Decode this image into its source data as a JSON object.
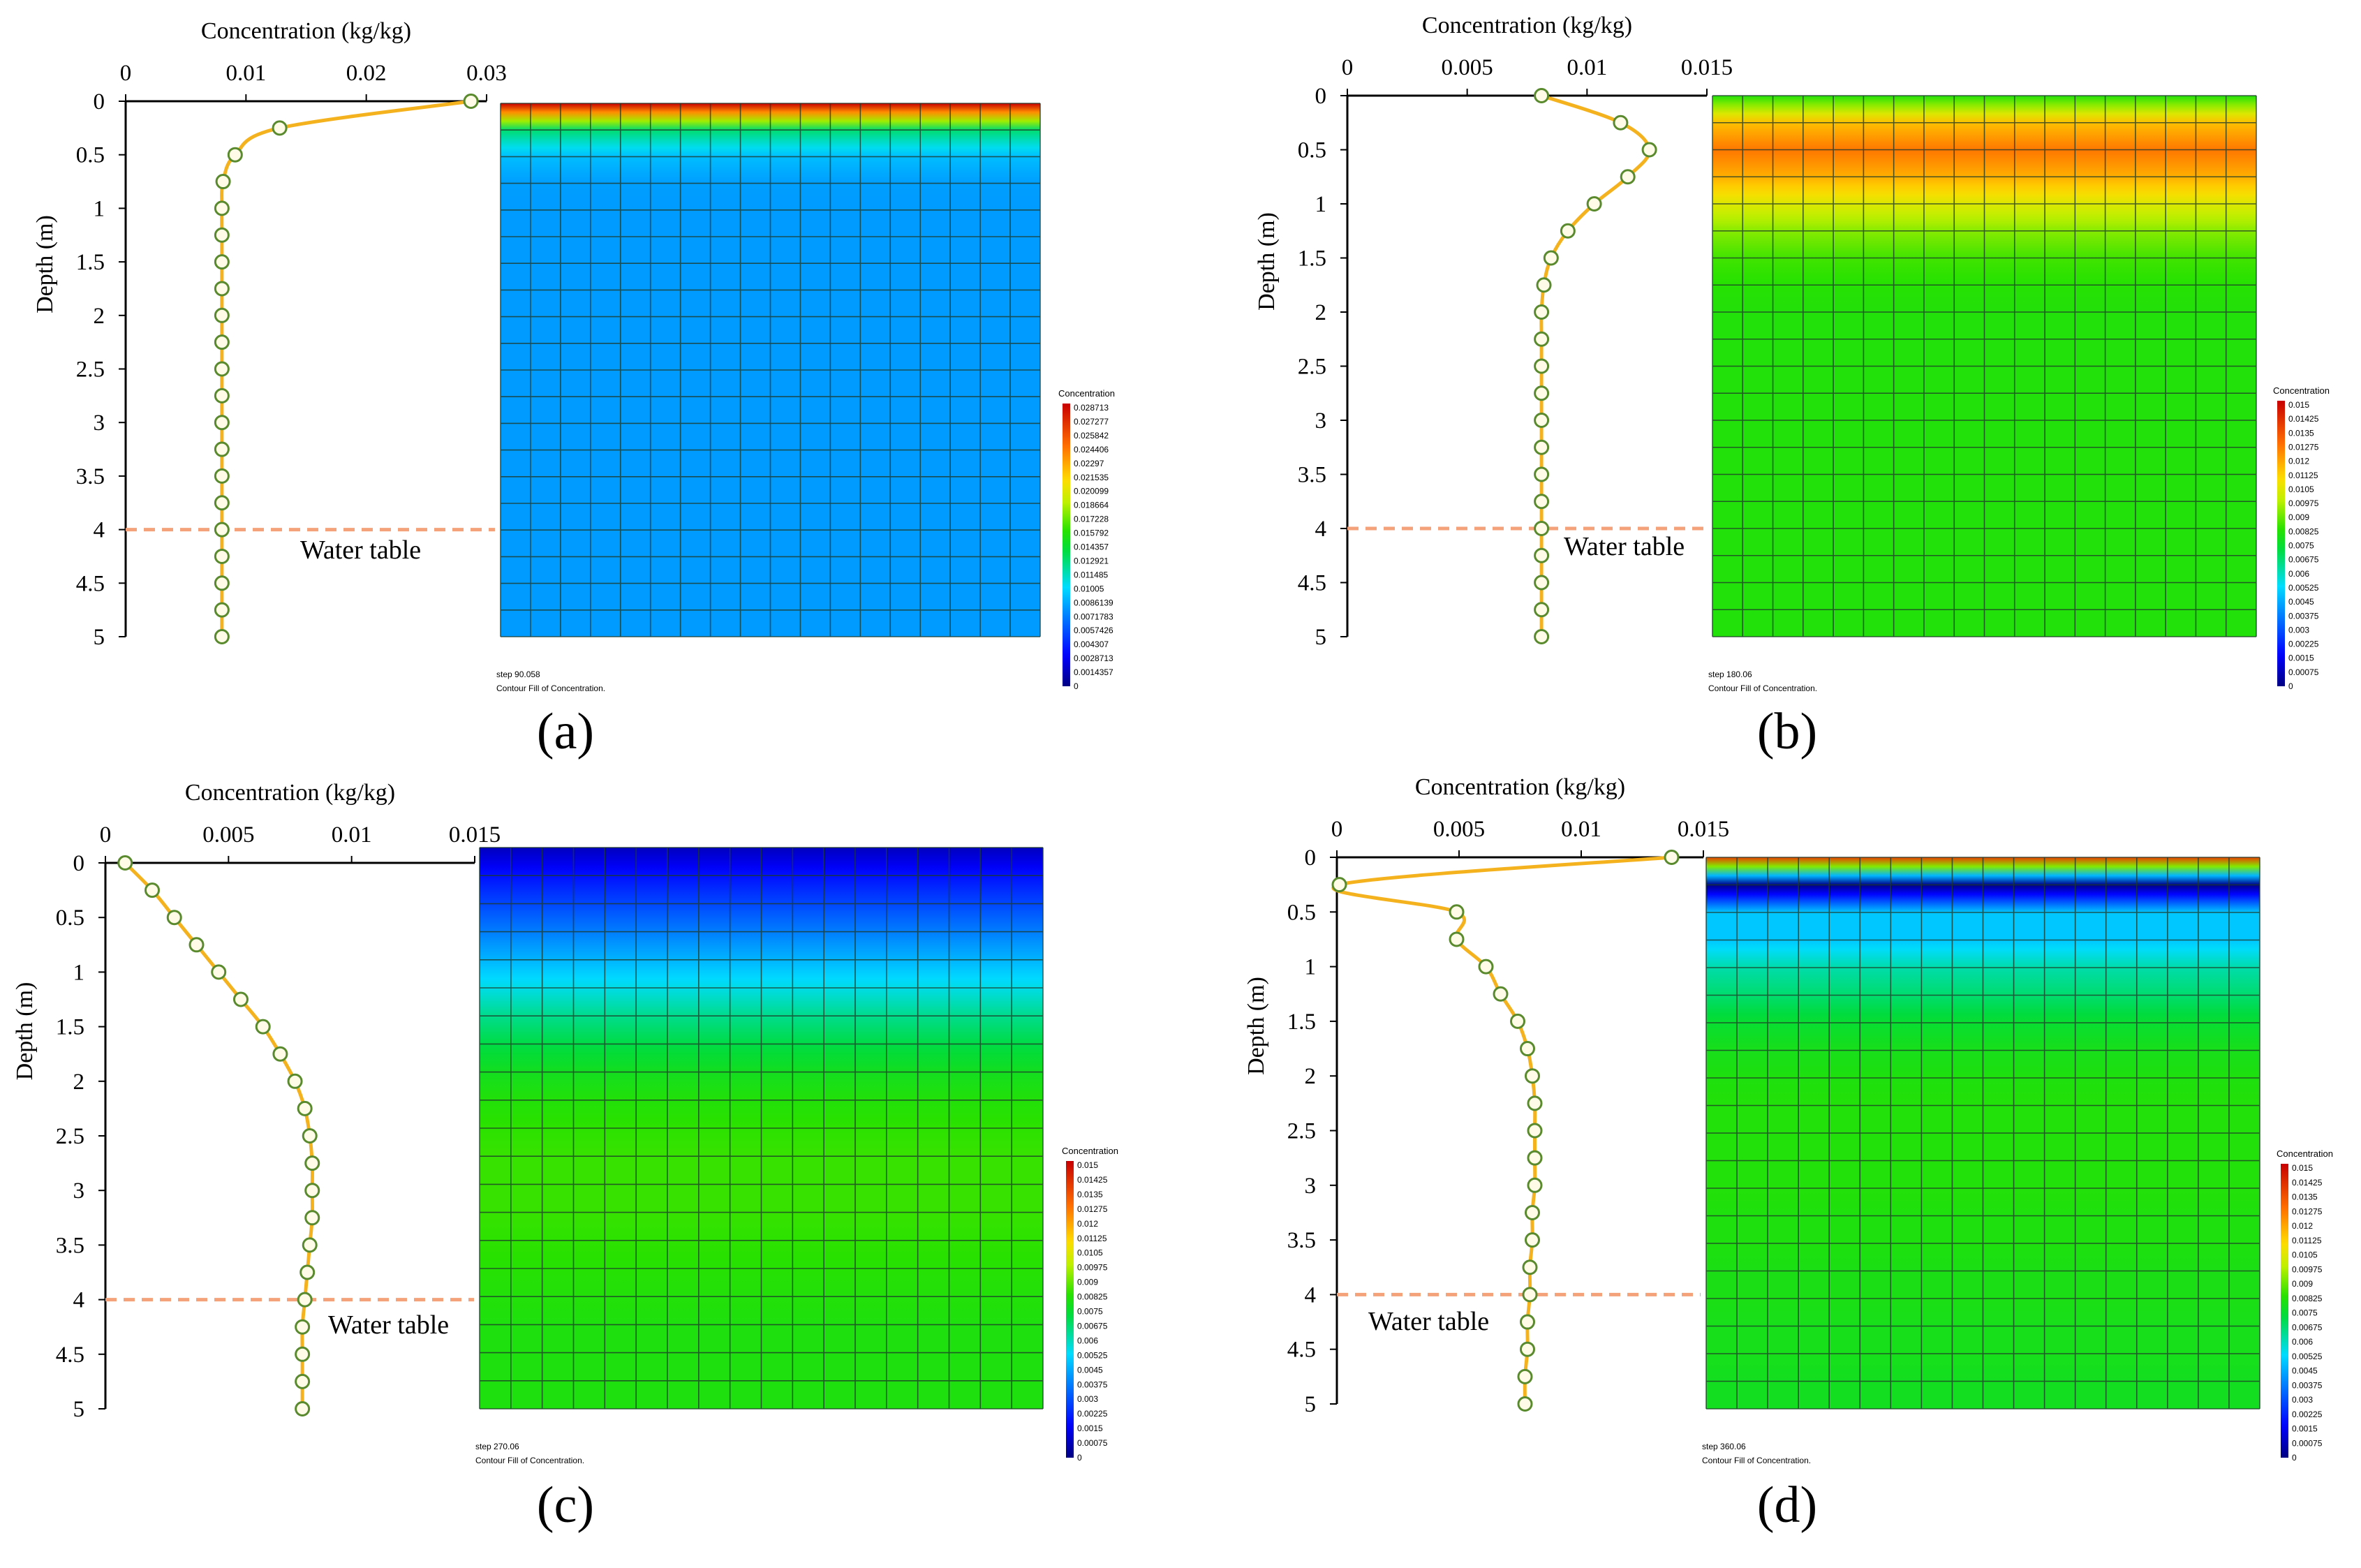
{
  "figure": {
    "colors": {
      "line": "#f5b21f",
      "marker": "#5a8a2e",
      "water_table": "#f4a27a",
      "mesh_line": "#1f3b2a"
    }
  },
  "chart_data": [
    {
      "type": "line",
      "panel_label": "(a)",
      "xlabel": "Concentration (kg/kg)",
      "ylabel": "Depth (m)",
      "xlim": [
        0,
        0.03
      ],
      "ylim": [
        0,
        5
      ],
      "xticks": [
        "0",
        "0.01",
        "0.02",
        "0.03"
      ],
      "yticks": [
        "0",
        "0.5",
        "1",
        "1.5",
        "2",
        "2.5",
        "3",
        "3.5",
        "4",
        "4.5",
        "5"
      ],
      "water_table_label": "Water table",
      "water_table_depth": 4,
      "series": [
        {
          "name": "Concentration",
          "depth": [
            0,
            0.25,
            0.5,
            0.75,
            1,
            1.25,
            1.5,
            1.75,
            2,
            2.25,
            2.5,
            2.75,
            3,
            3.25,
            3.5,
            3.75,
            4,
            4.25,
            4.5,
            4.75,
            5
          ],
          "values": [
            0.0287,
            0.0128,
            0.0091,
            0.0081,
            0.008,
            0.008,
            0.008,
            0.008,
            0.008,
            0.008,
            0.008,
            0.008,
            0.008,
            0.008,
            0.008,
            0.008,
            0.008,
            0.008,
            0.008,
            0.008,
            0.008
          ]
        }
      ],
      "contour": {
        "step_text": "step 90.058",
        "caption": "Contour Fill of Concentration.",
        "colorbar_title": "Concentration",
        "colorbar_labels": [
          "0.028713",
          "0.027277",
          "0.025842",
          "0.024406",
          "0.02297",
          "0.021535",
          "0.020099",
          "0.018664",
          "0.017228",
          "0.015792",
          "0.014357",
          "0.012921",
          "0.011485",
          "0.01005",
          "0.0086139",
          "0.0071783",
          "0.0057426",
          "0.004307",
          "0.0028713",
          "0.0014357",
          "0"
        ],
        "vmax": 0.028713
      }
    },
    {
      "type": "line",
      "panel_label": "(b)",
      "xlabel": "Concentration (kg/kg)",
      "ylabel": "Depth (m)",
      "xlim": [
        0,
        0.015
      ],
      "ylim": [
        0,
        5
      ],
      "xticks": [
        "0",
        "0.005",
        "0.01",
        "0.015"
      ],
      "yticks": [
        "0",
        "0.5",
        "1",
        "1.5",
        "2",
        "2.5",
        "3",
        "3.5",
        "4",
        "4.5",
        "5"
      ],
      "water_table_label": "Water table",
      "water_table_depth": 4,
      "series": [
        {
          "name": "Concentration",
          "depth": [
            0,
            0.25,
            0.5,
            0.75,
            1,
            1.25,
            1.5,
            1.75,
            2,
            2.25,
            2.5,
            2.75,
            3,
            3.25,
            3.5,
            3.75,
            4,
            4.25,
            4.5,
            4.75,
            5
          ],
          "values": [
            0.0081,
            0.0114,
            0.0126,
            0.0117,
            0.0103,
            0.0092,
            0.0085,
            0.0082,
            0.0081,
            0.0081,
            0.0081,
            0.0081,
            0.0081,
            0.0081,
            0.0081,
            0.0081,
            0.0081,
            0.0081,
            0.0081,
            0.0081,
            0.0081
          ]
        }
      ],
      "contour": {
        "step_text": "step 180.06",
        "caption": "Contour Fill of Concentration.",
        "colorbar_title": "Concentration",
        "colorbar_labels": [
          "0.015",
          "0.01425",
          "0.0135",
          "0.01275",
          "0.012",
          "0.01125",
          "0.0105",
          "0.00975",
          "0.009",
          "0.00825",
          "0.0075",
          "0.00675",
          "0.006",
          "0.00525",
          "0.0045",
          "0.00375",
          "0.003",
          "0.00225",
          "0.0015",
          "0.00075",
          "0"
        ],
        "vmax": 0.015
      }
    },
    {
      "type": "line",
      "panel_label": "(c)",
      "xlabel": "Concentration (kg/kg)",
      "ylabel": "Depth (m)",
      "xlim": [
        0,
        0.015
      ],
      "ylim": [
        0,
        5
      ],
      "xticks": [
        "0",
        "0.005",
        "0.01",
        "0.015"
      ],
      "yticks": [
        "0",
        "0.5",
        "1",
        "1.5",
        "2",
        "2.5",
        "3",
        "3.5",
        "4",
        "4.5",
        "5"
      ],
      "water_table_label": "Water table",
      "water_table_depth": 4,
      "series": [
        {
          "name": "Concentration",
          "depth": [
            0,
            0.25,
            0.5,
            0.75,
            1,
            1.25,
            1.5,
            1.75,
            2,
            2.25,
            2.5,
            2.75,
            3,
            3.25,
            3.5,
            3.75,
            4,
            4.25,
            4.5,
            4.75,
            5
          ],
          "values": [
            0.0008,
            0.0019,
            0.0028,
            0.0037,
            0.0046,
            0.0055,
            0.0064,
            0.0071,
            0.0077,
            0.0081,
            0.0083,
            0.0084,
            0.0084,
            0.0084,
            0.0083,
            0.0082,
            0.0081,
            0.008,
            0.008,
            0.008,
            0.008
          ]
        }
      ],
      "contour": {
        "step_text": "step 270.06",
        "caption": "Contour Fill of Concentration.",
        "colorbar_title": "Concentration",
        "colorbar_labels": [
          "0.015",
          "0.01425",
          "0.0135",
          "0.01275",
          "0.012",
          "0.01125",
          "0.0105",
          "0.00975",
          "0.009",
          "0.00825",
          "0.0075",
          "0.00675",
          "0.006",
          "0.00525",
          "0.0045",
          "0.00375",
          "0.003",
          "0.00225",
          "0.0015",
          "0.00075",
          "0"
        ],
        "vmax": 0.015
      }
    },
    {
      "type": "line",
      "panel_label": "(d)",
      "xlabel": "Concentration (kg/kg)",
      "ylabel": "Depth (m)",
      "xlim": [
        0,
        0.015
      ],
      "ylim": [
        0,
        5
      ],
      "xticks": [
        "0",
        "0.005",
        "0.01",
        "0.015"
      ],
      "yticks": [
        "0",
        "0.5",
        "1",
        "1.5",
        "2",
        "2.5",
        "3",
        "3.5",
        "4",
        "4.5",
        "5"
      ],
      "water_table_label": "Water table",
      "water_table_depth": 4,
      "series": [
        {
          "name": "Concentration",
          "depth": [
            0,
            0.25,
            0.5,
            0.75,
            1,
            1.25,
            1.5,
            1.75,
            2,
            2.25,
            2.5,
            2.75,
            3,
            3.25,
            3.5,
            3.75,
            4,
            4.25,
            4.5,
            4.75,
            5
          ],
          "values": [
            0.0137,
            0.0001,
            0.0049,
            0.0049,
            0.0061,
            0.0067,
            0.0074,
            0.0078,
            0.008,
            0.0081,
            0.0081,
            0.0081,
            0.0081,
            0.008,
            0.008,
            0.0079,
            0.0079,
            0.0078,
            0.0078,
            0.0077,
            0.0077
          ]
        }
      ],
      "contour": {
        "step_text": "step 360.06",
        "caption": "Contour Fill of Concentration.",
        "colorbar_title": "Concentration",
        "colorbar_labels": [
          "0.015",
          "0.01425",
          "0.0135",
          "0.01275",
          "0.012",
          "0.01125",
          "0.0105",
          "0.00975",
          "0.009",
          "0.00825",
          "0.0075",
          "0.00675",
          "0.006",
          "0.00525",
          "0.0045",
          "0.00375",
          "0.003",
          "0.00225",
          "0.0015",
          "0.00075",
          "0"
        ],
        "vmax": 0.015
      }
    }
  ]
}
